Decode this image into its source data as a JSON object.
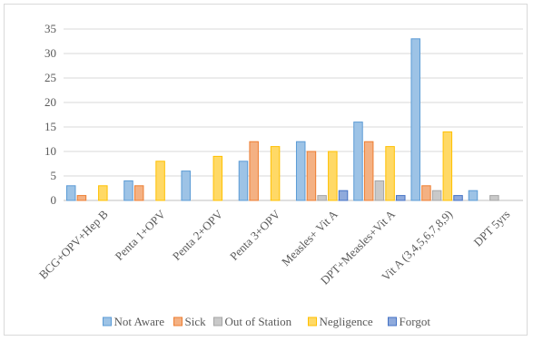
{
  "chart_data": {
    "type": "bar",
    "categories": [
      "BCG+OPV+Hep B",
      "Penta 1+OPV",
      "Penta 2+OPV",
      "Penta 3+OPV",
      "Measles+ Vit A",
      "DPT+Measles+Vit A",
      "Vit A (3,4,5,6,7,8,9)",
      "DPT 5yrs"
    ],
    "series": [
      {
        "name": "Not Aware",
        "color": "#9dc3e6",
        "stroke": "#5b9bd5",
        "values": [
          3,
          4,
          6,
          8,
          12,
          16,
          33,
          2
        ]
      },
      {
        "name": "Sick",
        "color": "#f4b183",
        "stroke": "#ed7d31",
        "values": [
          1,
          3,
          0,
          12,
          10,
          12,
          3,
          0
        ]
      },
      {
        "name": "Out of Station",
        "color": "#c9c9c9",
        "stroke": "#a5a5a5",
        "values": [
          0,
          0,
          0,
          0,
          1,
          4,
          2,
          1
        ]
      },
      {
        "name": "Negligence",
        "color": "#ffd966",
        "stroke": "#ffc000",
        "values": [
          3,
          8,
          9,
          11,
          10,
          11,
          14,
          0
        ]
      },
      {
        "name": "Forgot",
        "color": "#8faadc",
        "stroke": "#4472c4",
        "values": [
          0,
          0,
          0,
          0,
          2,
          1,
          1,
          0
        ]
      }
    ],
    "y_ticks": [
      0,
      5,
      10,
      15,
      20,
      25,
      30,
      35
    ],
    "ylim": [
      0,
      35
    ],
    "grid": true,
    "legend_position": "bottom",
    "title": "",
    "xlabel": "",
    "ylabel": ""
  }
}
